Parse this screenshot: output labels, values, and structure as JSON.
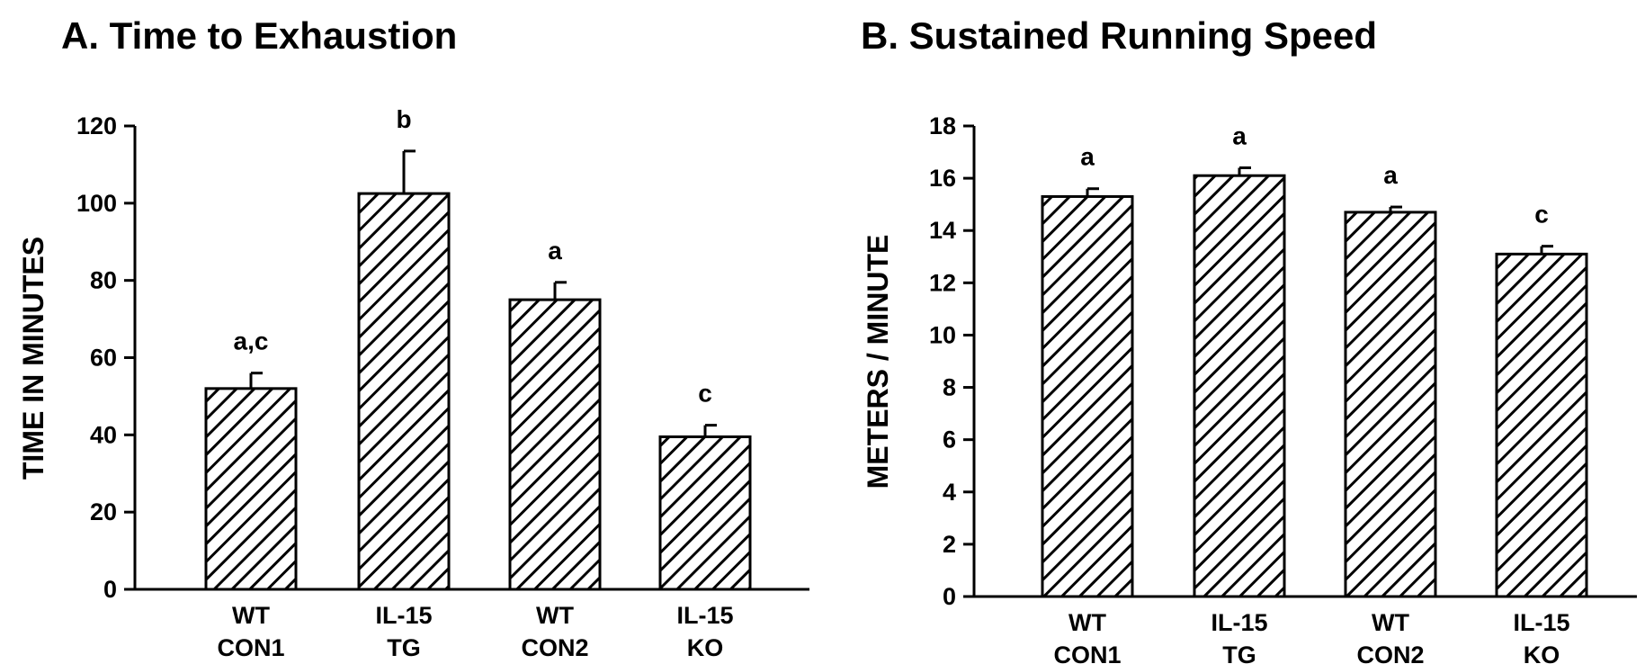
{
  "chart_data": [
    {
      "type": "bar",
      "title": "A. Time to Exhaustion",
      "ylabel": "TIME IN MINUTES",
      "xlabel": "",
      "ylim": [
        0,
        120
      ],
      "yticks": [
        0,
        20,
        40,
        60,
        80,
        100,
        120
      ],
      "categories": [
        [
          "WT",
          "CON1"
        ],
        [
          "IL-15",
          "TG"
        ],
        [
          "WT",
          "CON2"
        ],
        [
          "IL-15",
          "KO"
        ]
      ],
      "values": [
        52,
        102.5,
        75,
        39.5
      ],
      "errors": [
        4,
        11,
        4.5,
        3
      ],
      "significance": [
        "a,c",
        "b",
        "a",
        "c"
      ],
      "grid": false,
      "pattern": "diagonal-hatch"
    },
    {
      "type": "bar",
      "title": "B. Sustained Running Speed",
      "ylabel": "METERS / MINUTE",
      "xlabel": "",
      "ylim": [
        0,
        18
      ],
      "yticks": [
        0,
        2,
        4,
        6,
        8,
        10,
        12,
        14,
        16,
        18
      ],
      "categories": [
        [
          "WT",
          "CON1"
        ],
        [
          "IL-15",
          "TG"
        ],
        [
          "WT",
          "CON2"
        ],
        [
          "IL-15",
          "KO"
        ]
      ],
      "values": [
        15.3,
        16.1,
        14.7,
        13.1
      ],
      "errors": [
        0.3,
        0.3,
        0.2,
        0.3
      ],
      "significance": [
        "a",
        "a",
        "a",
        "c"
      ],
      "grid": false,
      "pattern": "diagonal-hatch"
    }
  ]
}
